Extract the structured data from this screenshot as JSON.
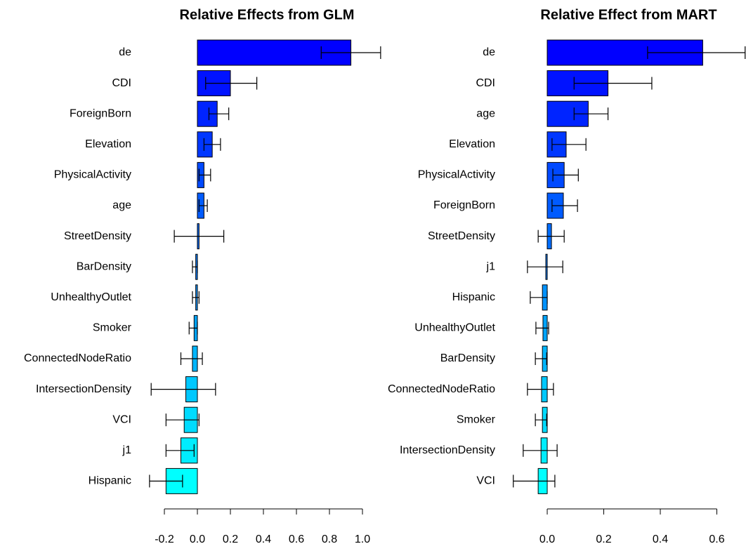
{
  "chart_data": [
    {
      "type": "bar",
      "orientation": "horizontal",
      "title": "Relative Effects from GLM",
      "categories": [
        "de",
        "CDI",
        "ForeignBorn",
        "Elevation",
        "PhysicalActivity",
        "age",
        "StreetDensity",
        "BarDensity",
        "UnhealthyOutlet",
        "Smoker",
        "ConnectedNodeRatio",
        "IntersectionDensity",
        "VCI",
        "j1",
        "Hispanic"
      ],
      "values": [
        0.93,
        0.2,
        0.12,
        0.09,
        0.04,
        0.04,
        0.01,
        -0.01,
        -0.01,
        -0.02,
        -0.03,
        -0.07,
        -0.08,
        -0.1,
        -0.19
      ],
      "err_low": [
        0.75,
        0.05,
        0.07,
        0.04,
        0.01,
        0.01,
        -0.14,
        -0.03,
        -0.03,
        -0.05,
        -0.1,
        -0.28,
        -0.19,
        -0.19,
        -0.29
      ],
      "err_high": [
        1.11,
        0.36,
        0.19,
        0.14,
        0.08,
        0.06,
        0.16,
        0.0,
        0.01,
        0.0,
        0.03,
        0.11,
        0.01,
        -0.02,
        -0.09
      ],
      "colors": [
        "#0000ff",
        "#0012ff",
        "#0024ff",
        "#0037ff",
        "#0049ff",
        "#005bff",
        "#006dff",
        "#0080ff",
        "#0092ff",
        "#00a4ff",
        "#00b6ff",
        "#00c8ff",
        "#00dbff",
        "#00edff",
        "#00ffff"
      ],
      "xlim": [
        -0.3,
        1.12
      ],
      "xticks": [
        -0.2,
        {
          "value": 0,
          "label": "0.0"
        },
        0.2,
        0.4,
        0.6,
        0.8,
        {
          "value": 1,
          "label": "1.0"
        }
      ]
    },
    {
      "type": "bar",
      "orientation": "horizontal",
      "title": "Relative Effect from MART",
      "categories": [
        "de",
        "CDI",
        "age",
        "Elevation",
        "PhysicalActivity",
        "ForeignBorn",
        "StreetDensity",
        "j1",
        "Hispanic",
        "UnhealthyOutlet",
        "BarDensity",
        "ConnectedNodeRatio",
        "Smoker",
        "IntersectionDensity",
        "VCI"
      ],
      "values": [
        0.55,
        0.215,
        0.145,
        0.067,
        0.06,
        0.057,
        0.015,
        -0.005,
        -0.017,
        -0.015,
        -0.017,
        -0.02,
        -0.017,
        -0.022,
        -0.032
      ],
      "err_low": [
        0.355,
        0.095,
        0.095,
        0.017,
        0.02,
        0.017,
        -0.032,
        -0.07,
        -0.06,
        -0.04,
        -0.042,
        -0.07,
        -0.042,
        -0.085,
        -0.12
      ],
      "err_high": [
        0.7,
        0.37,
        0.215,
        0.137,
        0.11,
        0.107,
        0.06,
        0.055,
        0.0,
        0.005,
        -0.002,
        0.022,
        -0.002,
        0.035,
        0.027
      ],
      "colors": [
        "#0000ff",
        "#0012ff",
        "#0024ff",
        "#0037ff",
        "#0049ff",
        "#005bff",
        "#006dff",
        "#0080ff",
        "#0092ff",
        "#00a4ff",
        "#00b6ff",
        "#00c8ff",
        "#00dbff",
        "#00edff",
        "#00ffff"
      ],
      "xlim": [
        -0.13,
        0.7
      ],
      "xticks": [
        {
          "value": 0,
          "label": "0.0"
        },
        0.2,
        0.4,
        0.6
      ]
    }
  ]
}
